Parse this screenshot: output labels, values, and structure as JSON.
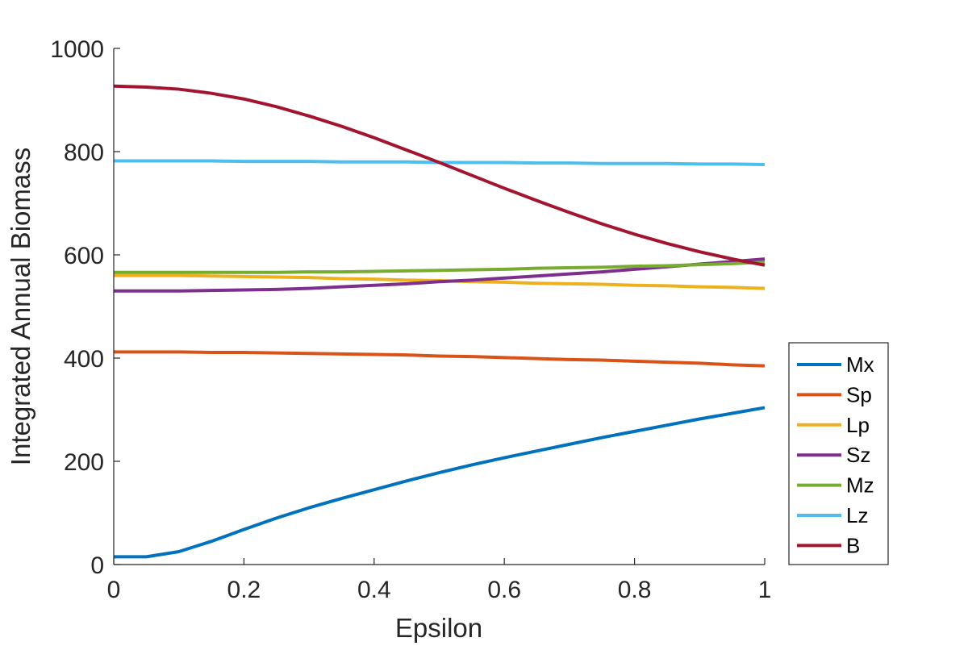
{
  "chart_data": {
    "type": "line",
    "title": "",
    "xlabel": "Epsilon",
    "ylabel": "Integrated Annual Biomass",
    "xlim": [
      0,
      1
    ],
    "ylim": [
      0,
      1000
    ],
    "xticks": [
      0,
      0.2,
      0.4,
      0.6,
      0.8,
      1
    ],
    "xtick_labels": [
      "0",
      "0.2",
      "0.4",
      "0.6",
      "0.8",
      "1"
    ],
    "yticks": [
      0,
      200,
      400,
      600,
      800,
      1000
    ],
    "ytick_labels": [
      "0",
      "200",
      "400",
      "600",
      "800",
      "1000"
    ],
    "grid": false,
    "legend_location": "bottom-right outside",
    "x": [
      0,
      0.05,
      0.1,
      0.15,
      0.2,
      0.25,
      0.3,
      0.35,
      0.4,
      0.45,
      0.5,
      0.55,
      0.6,
      0.65,
      0.7,
      0.75,
      0.8,
      0.85,
      0.9,
      0.95,
      1
    ],
    "series": [
      {
        "name": "Mx",
        "color": "#0072BD",
        "values": [
          15,
          15,
          25,
          45,
          68,
          90,
          110,
          128,
          145,
          162,
          178,
          193,
          207,
          220,
          233,
          246,
          258,
          270,
          282,
          293,
          304
        ]
      },
      {
        "name": "Sp",
        "color": "#D95319",
        "values": [
          412,
          412,
          412,
          411,
          411,
          410,
          409,
          408,
          407,
          406,
          404,
          403,
          401,
          399,
          397,
          396,
          394,
          392,
          390,
          387,
          385
        ]
      },
      {
        "name": "Lp",
        "color": "#EDB120",
        "values": [
          560,
          560,
          560,
          559,
          558,
          557,
          556,
          554,
          553,
          551,
          550,
          548,
          547,
          545,
          544,
          543,
          541,
          540,
          538,
          537,
          535
        ]
      },
      {
        "name": "Sz",
        "color": "#7E2F8E",
        "values": [
          530,
          530,
          530,
          531,
          532,
          533,
          535,
          538,
          541,
          544,
          548,
          551,
          555,
          559,
          563,
          567,
          572,
          577,
          582,
          587,
          592
        ]
      },
      {
        "name": "Mz",
        "color": "#77AC30",
        "values": [
          566,
          566,
          566,
          566,
          566,
          566,
          567,
          567,
          568,
          569,
          570,
          571,
          572,
          574,
          575,
          576,
          578,
          579,
          581,
          583,
          586
        ]
      },
      {
        "name": "Lz",
        "color": "#4DBEEE",
        "values": [
          782,
          782,
          782,
          782,
          781,
          781,
          781,
          780,
          780,
          780,
          779,
          779,
          779,
          778,
          778,
          777,
          777,
          777,
          776,
          776,
          775
        ]
      },
      {
        "name": "B",
        "color": "#A2142F",
        "values": [
          927,
          925,
          921,
          913,
          902,
          887,
          869,
          849,
          827,
          803,
          779,
          754,
          729,
          705,
          682,
          660,
          640,
          622,
          606,
          592,
          580
        ]
      }
    ]
  }
}
